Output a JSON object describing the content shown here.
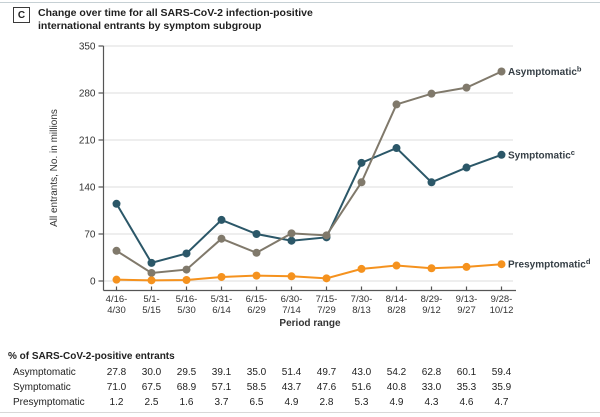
{
  "figure": {
    "panel_label": "C",
    "title_lines": [
      "Change over time for all SARS-CoV-2 infection-positive",
      "international entrants by symptom subgroup"
    ]
  },
  "chart_data": {
    "type": "line",
    "title": "Change over time for all SARS-CoV-2 infection-positive international entrants by symptom subgroup",
    "xlabel": "Period range",
    "ylabel": "All entrants, No. in millions",
    "ylim": [
      0,
      350
    ],
    "yticks": [
      0,
      70,
      140,
      210,
      280,
      350
    ],
    "grid": true,
    "legend_position": "right-of-last-point",
    "categories": [
      "4/16-4/30",
      "5/1-5/15",
      "5/16-5/30",
      "5/31-6/14",
      "6/15-6/29",
      "6/30-7/14",
      "7/15-7/29",
      "7/30-8/13",
      "8/14-8/28",
      "8/29-9/12",
      "9/13-9/27",
      "9/28-10/12"
    ],
    "series": [
      {
        "name": "Asymptomatic",
        "sup": "b",
        "color": "#80796b",
        "values": [
          45,
          12,
          17,
          63,
          42,
          71,
          68,
          147,
          263,
          279,
          288,
          312
        ]
      },
      {
        "name": "Symptomatic",
        "sup": "c",
        "color": "#2b5768",
        "values": [
          115,
          27,
          41,
          91,
          70,
          60,
          65,
          176,
          198,
          147,
          169,
          188
        ]
      },
      {
        "name": "Presymptomatic",
        "sup": "d",
        "color": "#f5921e",
        "values": [
          2,
          1,
          1.5,
          6,
          8,
          7,
          4,
          18,
          23,
          19,
          21,
          25
        ]
      }
    ]
  },
  "table": {
    "header": "% of SARS-CoV-2-positive entrants",
    "rows": [
      {
        "label": "Asymptomatic",
        "values": [
          "27.8",
          "30.0",
          "29.5",
          "39.1",
          "35.0",
          "51.4",
          "49.7",
          "43.0",
          "54.2",
          "62.8",
          "60.1",
          "59.4"
        ]
      },
      {
        "label": "Symptomatic",
        "values": [
          "71.0",
          "67.5",
          "68.9",
          "57.1",
          "58.5",
          "43.7",
          "47.6",
          "51.6",
          "40.8",
          "33.0",
          "35.3",
          "35.9"
        ]
      },
      {
        "label": "Presymptomatic",
        "values": [
          "1.2",
          "2.5",
          "1.6",
          "3.7",
          "6.5",
          "4.9",
          "2.8",
          "5.3",
          "4.9",
          "4.3",
          "4.6",
          "4.7"
        ]
      }
    ]
  },
  "colors": {
    "grid": "#dddddd",
    "axis": "#555555",
    "tick_text": "#333333",
    "legend_text": "#363f46",
    "asymptomatic": "#80796b",
    "symptomatic": "#2b5768",
    "presymptomatic": "#f5921e"
  }
}
